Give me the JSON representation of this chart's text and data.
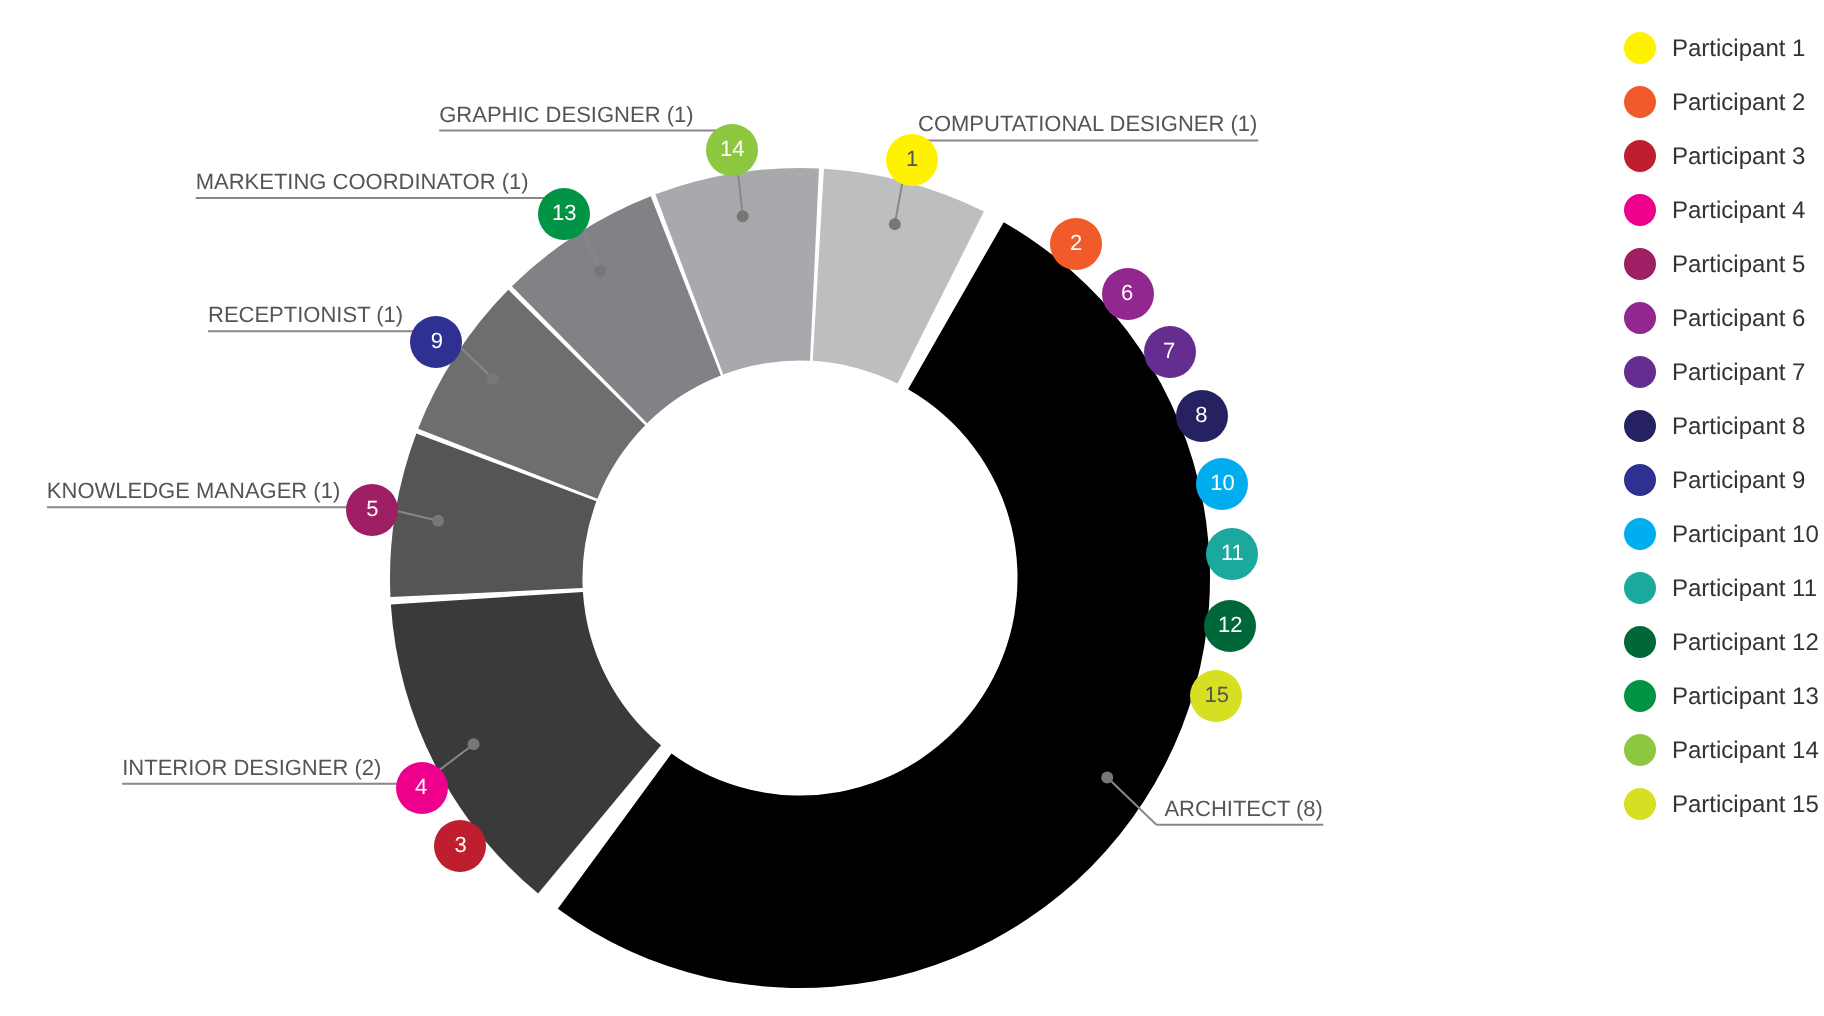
{
  "chart_data": [
    {
      "type": "donut",
      "categories": [
        "COMPUTATIONAL DESIGNER (1)",
        "ARCHITECT (8)",
        "INTERIOR DESIGNER (2)",
        "KNOWLEDGE MANAGER (1)",
        "RECEPTIONIST (1)",
        "MARKETING COORDINATOR (1)",
        "GRAPHIC DESIGNER (1)"
      ],
      "values": [
        1,
        8,
        2,
        1,
        1,
        1,
        1
      ],
      "colors": [
        "#bdbec0",
        "#000000",
        "#3a3a3a",
        "#555555",
        "#6d6e70",
        "#808285",
        "#a7a9ac"
      ],
      "annotations": [
        {
          "text": "1",
          "x": "COMPUTATIONAL DESIGNER (1)"
        },
        {
          "text": "2",
          "x": "ARCHITECT (8)"
        },
        {
          "text": "3",
          "x": "INTERIOR DESIGNER (2)"
        },
        {
          "text": "4",
          "x": "INTERIOR DESIGNER (2)"
        },
        {
          "text": "5",
          "x": "KNOWLEDGE MANAGER (1)"
        },
        {
          "text": "6",
          "x": "ARCHITECT (8)"
        },
        {
          "text": "7",
          "x": "ARCHITECT (8)"
        },
        {
          "text": "8",
          "x": "ARCHITECT (8)"
        },
        {
          "text": "9",
          "x": "RECEPTIONIST (1)"
        },
        {
          "text": "10",
          "x": "ARCHITECT (8)"
        },
        {
          "text": "11",
          "x": "ARCHITECT (8)"
        },
        {
          "text": "12",
          "x": "ARCHITECT (8)"
        },
        {
          "text": "13",
          "x": "MARKETING COORDINATOR (1)"
        },
        {
          "text": "14",
          "x": "GRAPHIC DESIGNER (1)"
        },
        {
          "text": "15",
          "x": "ARCHITECT (8)"
        }
      ],
      "legend": false
    },
    {
      "type": "other",
      "categories": [
        "Participant 1",
        "Participant 2",
        "Participant 3",
        "Participant 4",
        "Participant 5",
        "Participant 6",
        "Participant 7",
        "Participant 8",
        "Participant 9",
        "Participant 10",
        "Participant 11",
        "Participant 12",
        "Participant 13",
        "Participant 14",
        "Participant 15"
      ],
      "colors": [
        "#fff200",
        "#f15a29",
        "#be1e2d",
        "#ec008c",
        "#9e1f63",
        "#92278f",
        "#662d91",
        "#262262",
        "#2e3192",
        "#00aeef",
        "#1ba99d",
        "#006838",
        "#009444",
        "#8dc63f",
        "#d7df23"
      ]
    }
  ]
}
